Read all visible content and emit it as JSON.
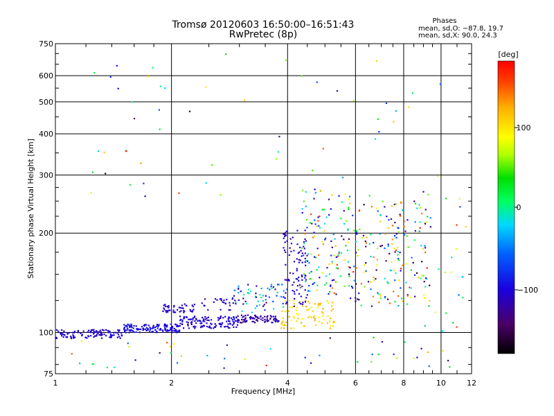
{
  "chart_data": {
    "type": "scatter",
    "title": "Tromsø 20120603 16:50:00–16:51:43",
    "subtitle": "RwPretec (8p)",
    "xlabel": "Frequency [MHz]",
    "ylabel": "Stationary phase Virtual Height [km]",
    "x_scale": "log",
    "y_scale": "log",
    "xlim": [
      1,
      12
    ],
    "ylim": [
      75,
      750
    ],
    "x_ticks": [
      "1",
      "2",
      "4",
      "6",
      "8",
      "10",
      "12"
    ],
    "y_ticks": [
      "75",
      "100",
      "200",
      "300",
      "400",
      "500",
      "600",
      "750"
    ],
    "grid": true,
    "phases_box": {
      "title": "Phases",
      "line1": "mean, sd,O: −87.8, 19.7",
      "line2": "mean, sd,X:  90.0, 24.3"
    },
    "colorbar": {
      "label": "[deg]",
      "range": [
        -180,
        180
      ],
      "tick_labels": [
        "100",
        "0",
        "−100"
      ],
      "colormap": "rainbow (black → purple → blue → cyan → green → yellow → orange → red)"
    },
    "point_clusters": [
      {
        "x": [
          1.0,
          1.5
        ],
        "y": [
          96,
          102
        ],
        "phase": [
          -115,
          -95
        ],
        "count": 110
      },
      {
        "x": [
          1.5,
          2.1
        ],
        "y": [
          100,
          106
        ],
        "phase": [
          -110,
          -85
        ],
        "count": 130
      },
      {
        "x": [
          1.9,
          2.3
        ],
        "y": [
          115,
          122
        ],
        "phase": [
          -120,
          -95
        ],
        "count": 45
      },
      {
        "x": [
          2.1,
          3.0
        ],
        "y": [
          103,
          112
        ],
        "phase": [
          -120,
          -90
        ],
        "count": 120
      },
      {
        "x": [
          2.4,
          3.1
        ],
        "y": [
          117,
          128
        ],
        "phase": [
          -130,
          -95
        ],
        "count": 30
      },
      {
        "x": [
          2.9,
          3.8
        ],
        "y": [
          107,
          113
        ],
        "phase": [
          -140,
          -100
        ],
        "count": 80
      },
      {
        "x": [
          2.9,
          4.0
        ],
        "y": [
          115,
          140
        ],
        "phase": [
          -150,
          10
        ],
        "count": 60
      },
      {
        "x": [
          3.8,
          5.3
        ],
        "y": [
          103,
          125
        ],
        "phase": [
          85,
          130
        ],
        "count": 90
      },
      {
        "x": [
          3.9,
          4.5
        ],
        "y": [
          120,
          205
        ],
        "phase": [
          -130,
          -90
        ],
        "count": 90
      },
      {
        "x": [
          4.3,
          5.8
        ],
        "y": [
          130,
          270
        ],
        "phase": [
          -150,
          170
        ],
        "count": 130
      },
      {
        "x": [
          5.7,
          9.4
        ],
        "y": [
          120,
          250
        ],
        "phase": [
          -170,
          170
        ],
        "count": 200
      },
      {
        "x": [
          8.9,
          11.6
        ],
        "y": [
          100,
          300
        ],
        "phase": [
          -140,
          160
        ],
        "count": 25
      },
      {
        "x": [
          1.0,
          11.0
        ],
        "y": [
          78,
          98
        ],
        "phase": [
          -150,
          170
        ],
        "count": 45
      },
      {
        "x": [
          1.2,
          11.0
        ],
        "y": [
          250,
          700
        ],
        "phase": [
          -170,
          170
        ],
        "count": 55
      }
    ],
    "notes": "Dense O-mode trace near 100 km (1–4 MHz, blue), rising F-region trace 4–9 MHz (mixed phases), yellow/orange X-mode trace near 105–125 km at 4–5 MHz."
  }
}
